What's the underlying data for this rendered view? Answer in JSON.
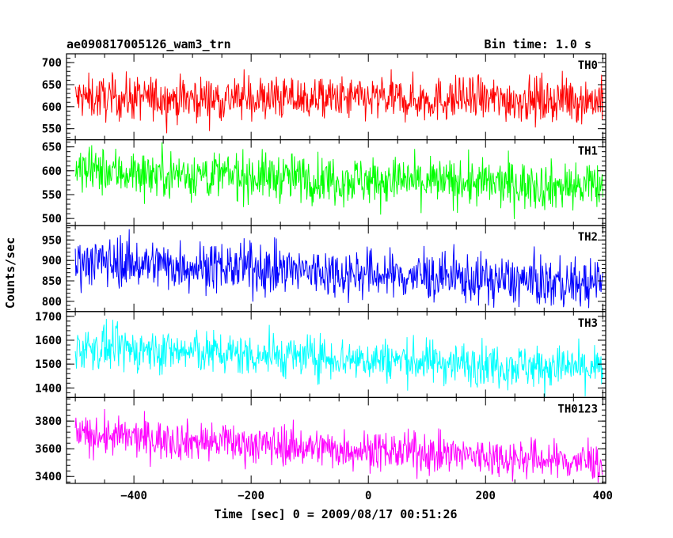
{
  "header": {
    "title": "ae090817005126_wam3_trn",
    "bin_time": "Bin time: 1.0 s"
  },
  "chart_data": {
    "type": "line",
    "xlabel": "Time [sec] 0 = 2009/08/17 00:51:26",
    "ylabel": "Counts/sec",
    "xlim": [
      -515,
      405
    ],
    "x_ticks": [
      -400,
      -200,
      0,
      200,
      400
    ],
    "x_tick_labels": [
      "−400",
      "−200",
      "0",
      "200",
      "400"
    ],
    "x_range_data": [
      -500,
      400
    ],
    "panels": [
      {
        "name": "TH0",
        "color": "#ff0000",
        "ylim": [
          525,
          720
        ],
        "y_ticks": [
          550,
          600,
          650,
          700
        ],
        "y_tick_labels": [
          "550",
          "600",
          "650",
          "700"
        ],
        "trend_start": 620,
        "trend_end": 615,
        "noise": 25
      },
      {
        "name": "TH1",
        "color": "#00ff00",
        "ylim": [
          485,
          665
        ],
        "y_ticks": [
          500,
          550,
          600,
          650
        ],
        "y_tick_labels": [
          "500",
          "550",
          "600",
          "650"
        ],
        "trend_start": 600,
        "trend_end": 565,
        "noise": 25
      },
      {
        "name": "TH2",
        "color": "#0000ff",
        "ylim": [
          775,
          985
        ],
        "y_ticks": [
          800,
          850,
          900,
          950
        ],
        "y_tick_labels": [
          "800",
          "850",
          "900",
          "950"
        ],
        "trend_start": 900,
        "trend_end": 840,
        "noise": 30
      },
      {
        "name": "TH3",
        "color": "#00ffff",
        "ylim": [
          1360,
          1720
        ],
        "y_ticks": [
          1400,
          1500,
          1600,
          1700
        ],
        "y_tick_labels": [
          "1400",
          "1500",
          "1600",
          "1700"
        ],
        "trend_start": 1570,
        "trend_end": 1480,
        "noise": 45
      },
      {
        "name": "TH0123",
        "color": "#ff00ff",
        "ylim": [
          3350,
          3970
        ],
        "y_ticks": [
          3400,
          3600,
          3800
        ],
        "y_tick_labels": [
          "3400",
          "3600",
          "3800"
        ],
        "trend_start": 3700,
        "trend_end": 3500,
        "noise": 70
      }
    ]
  }
}
